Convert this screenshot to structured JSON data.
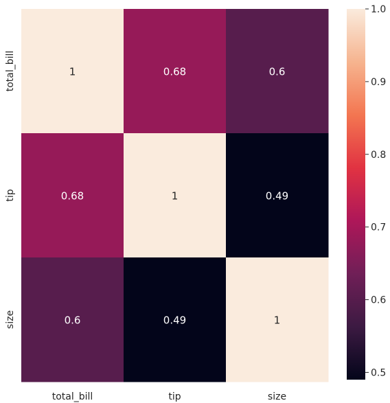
{
  "chart_data": {
    "type": "heatmap",
    "title": "",
    "xlabel": "",
    "ylabel": "",
    "row_labels": [
      "total_bill",
      "tip",
      "size"
    ],
    "column_labels": [
      "total_bill",
      "tip",
      "size"
    ],
    "values": [
      [
        1,
        0.68,
        0.6
      ],
      [
        0.68,
        1,
        0.49
      ],
      [
        0.6,
        0.49,
        1
      ]
    ],
    "cell_annotations": [
      [
        "1",
        "0.68",
        "0.6"
      ],
      [
        "0.68",
        "1",
        "0.49"
      ],
      [
        "0.6",
        "0.49",
        "1"
      ]
    ],
    "colorbar": {
      "range": [
        0.49,
        1.0
      ],
      "ticks": [
        0.5,
        0.6,
        0.7,
        0.8,
        0.9,
        1.0
      ],
      "tick_labels": [
        "0.5",
        "0.6",
        "0.7",
        "0.8",
        "0.9",
        "1.0"
      ]
    },
    "colormap": "rocket",
    "colormap_stops": [
      "#03051a",
      "#3c1a42",
      "#701f57",
      "#ae1759",
      "#e13342",
      "#f37651",
      "#f6b48f",
      "#faebdd"
    ],
    "annotation_text_colors": {
      "on_dark": "#ffffff",
      "on_light": "#262626"
    },
    "grid": false,
    "legend": "colorbar-right"
  }
}
